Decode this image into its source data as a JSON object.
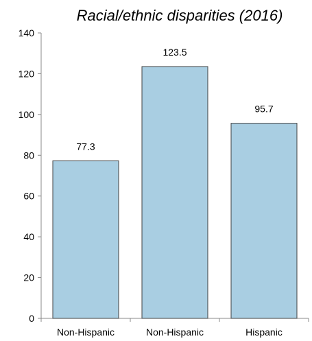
{
  "chart_data": {
    "type": "bar",
    "title": "Racial/ethnic disparities (2016)",
    "categories": [
      "Non-Hispanic",
      "Non-Hispanic",
      "Hispanic"
    ],
    "values": [
      77.3,
      123.5,
      95.7
    ],
    "data_labels": [
      "77.3",
      "123.5",
      "95.7"
    ],
    "xlabel": "",
    "ylabel": "",
    "ylim": [
      0,
      140
    ],
    "yticks": [
      0,
      20,
      40,
      60,
      80,
      100,
      120,
      140
    ],
    "grid": false,
    "bar_color": "#a9cee2",
    "bar_edge_color": "#404040"
  }
}
